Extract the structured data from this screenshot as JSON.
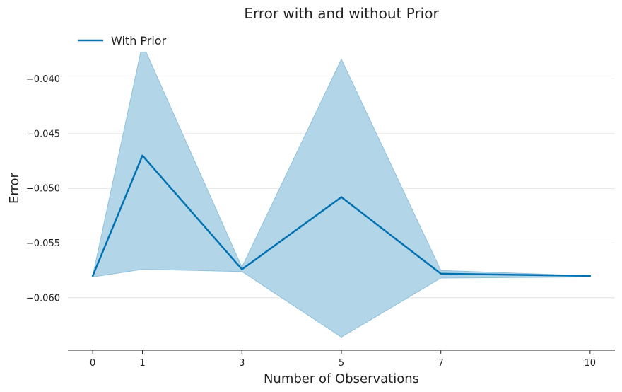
{
  "chart_data": {
    "type": "line",
    "title": "Error with and without Prior",
    "xlabel": "Number of Observations",
    "ylabel": "Error",
    "x": [
      0,
      1,
      3,
      5,
      7,
      10
    ],
    "x_ticks": [
      "0",
      "1",
      "3",
      "5",
      "7",
      "10"
    ],
    "y_ticks": [
      -0.06,
      -0.055,
      -0.05,
      -0.045,
      -0.04
    ],
    "y_tick_labels": [
      "−0.060",
      "−0.055",
      "−0.050",
      "−0.045",
      "−0.040"
    ],
    "xlim": [
      -0.5,
      10.5
    ],
    "ylim": [
      -0.0648,
      -0.0375
    ],
    "grid": "horizontal",
    "legend": "top-left",
    "series": [
      {
        "name": "With Prior",
        "color": "#0072b2",
        "band_color": "#b3d5e8",
        "band_edge_color": "#8fc1dc",
        "values": [
          -0.058,
          -0.047,
          -0.0574,
          -0.0508,
          -0.0578,
          -0.058
        ],
        "upper": [
          -0.058,
          -0.0368,
          -0.0572,
          -0.0382,
          -0.0575,
          -0.058
        ],
        "lower": [
          -0.0581,
          -0.0574,
          -0.0576,
          -0.0636,
          -0.0582,
          -0.0581
        ]
      }
    ]
  }
}
